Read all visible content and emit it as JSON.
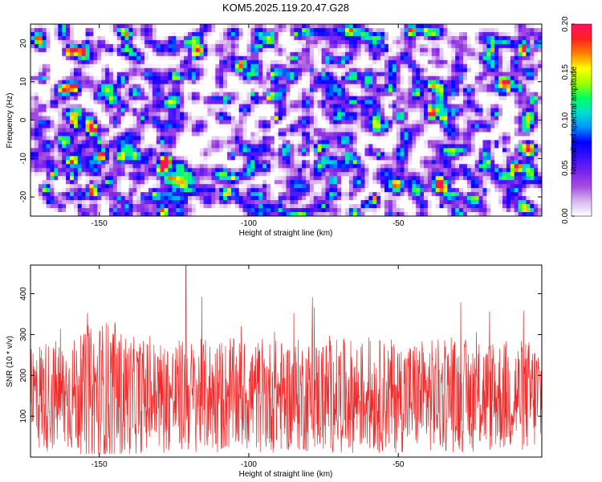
{
  "page_title": "KOM5.2025.119.20.47.G28",
  "chart_data": [
    {
      "type": "heatmap",
      "title": "KOM5.2025.119.20.47.G28",
      "xlabel": "Height of straight line (km)",
      "ylabel": "Frequency (Hz)",
      "xlim": [
        -173,
        -2
      ],
      "ylim": [
        -25,
        25
      ],
      "x_ticks": [
        -150,
        -100,
        -50
      ],
      "y_ticks": [
        -20,
        -10,
        0,
        10,
        20
      ],
      "colorbar": {
        "label": "Normalized spectral amplitude",
        "range": [
          0,
          0.2
        ],
        "ticks": [
          0.0,
          0.05,
          0.1,
          0.15,
          0.2
        ],
        "tick_labels": [
          "0.00",
          "0.05",
          "0.10",
          "0.15",
          "0.20"
        ],
        "colors": [
          "#ffffff",
          "#d9b8ee",
          "#a64de0",
          "#7a22ee",
          "#3a10ff",
          "#0000ff",
          "#0090ff",
          "#00e0d0",
          "#00ff60",
          "#a0ff00",
          "#ffff00",
          "#ff8000",
          "#ff2020",
          "#ff1060"
        ]
      },
      "peak": {
        "x": -128,
        "y": -10,
        "value": 0.19
      }
    },
    {
      "type": "line",
      "xlabel": "Height of straight line (km)",
      "ylabel": "SNR (10 * v/v)",
      "xlim": [
        -173,
        -2
      ],
      "ylim": [
        0,
        470
      ],
      "x_ticks": [
        -150,
        -100,
        -50
      ],
      "y_ticks": [
        100,
        200,
        300,
        400
      ],
      "series": [
        {
          "color": "#ee2a2a",
          "mean_level": 150,
          "peak_max": 470,
          "peak_x": -121
        }
      ]
    }
  ]
}
